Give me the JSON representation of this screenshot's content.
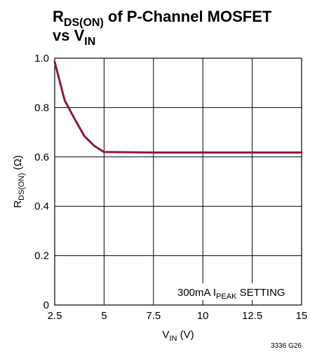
{
  "chart_data": {
    "type": "line",
    "title": {
      "line1_main": "R",
      "line1_sub": "DS(ON)",
      "line1_rest": " of P-Channel MOSFET",
      "line2_main": "vs V",
      "line2_sub": "IN"
    },
    "xlabel": {
      "main": "V",
      "sub": "IN",
      "rest": " (V)"
    },
    "ylabel": {
      "main": "R",
      "sub": "DS(ON)",
      "rest": " (Ω)"
    },
    "xlim": [
      2.5,
      15
    ],
    "ylim": [
      0,
      1.0
    ],
    "xticks": [
      "2.5",
      "5",
      "7.5",
      "10",
      "12.5",
      "15"
    ],
    "yticks": [
      "0",
      "0.2",
      "0.4",
      "0.6",
      "0.8",
      "1.0"
    ],
    "grid": true,
    "series": [
      {
        "color": "#8b1a34",
        "x": [
          2.5,
          3.0,
          3.5,
          4.0,
          4.5,
          5.0,
          7.5,
          10,
          12.5,
          15
        ],
        "y": [
          0.985,
          0.83,
          0.755,
          0.685,
          0.645,
          0.62,
          0.618,
          0.618,
          0.618,
          0.618
        ]
      }
    ],
    "annotation": {
      "pre": "300mA I",
      "sub": "PEAK",
      "post": " SETTING"
    },
    "figure_id": "3336 G26"
  }
}
